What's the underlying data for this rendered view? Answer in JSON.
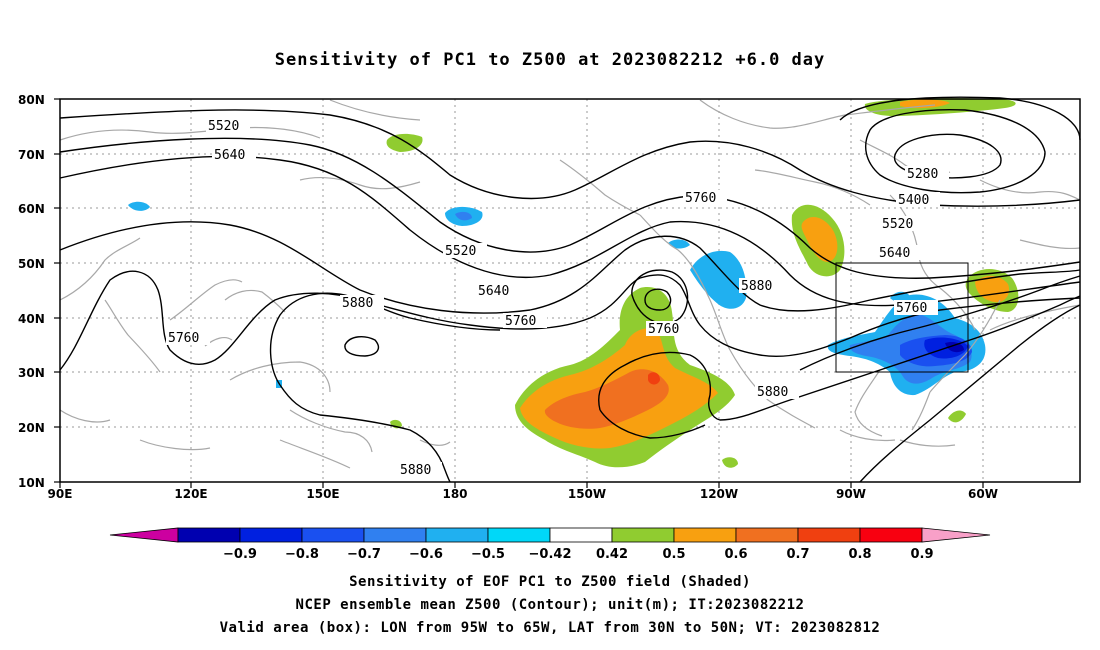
{
  "title": "Sensitivity of PC1 to Z500 at 2023082212 +6.0 day",
  "lat_labels": [
    "80N",
    "70N",
    "60N",
    "50N",
    "40N",
    "30N",
    "20N",
    "10N"
  ],
  "lon_labels": [
    "90E",
    "120E",
    "150E",
    "180",
    "150W",
    "120W",
    "90W",
    "60W"
  ],
  "contour_labels": {
    "c5520a": "5520",
    "c5640a": "5640",
    "c5520b": "5520",
    "c5640b": "5640",
    "c5760a": "5760",
    "c5880a": "5880",
    "c5760b": "5760",
    "c5760c": "5760",
    "c5760d": "5760",
    "c5880b": "5880",
    "c5880c": "5880",
    "c5880d": "5880",
    "c5280": "5280",
    "c5400": "5400",
    "c5520c": "5520",
    "c5640c": "5640",
    "c5760e": "5760"
  },
  "colorbar": {
    "ticks": [
      "−0.9",
      "−0.8",
      "−0.7",
      "−0.6",
      "−0.5",
      "−0.42",
      "0.42",
      "0.5",
      "0.6",
      "0.7",
      "0.8",
      "0.9"
    ],
    "colors": {
      "below": "#cc00a0",
      "bins": [
        "#0000b0",
        "#0020e0",
        "#1a50f0",
        "#3080f0",
        "#20b0f0",
        "#00d8f8",
        "#ffffff",
        "#90cc30",
        "#f8a010",
        "#f07020",
        "#f04010",
        "#f80010"
      ],
      "above": "#f8a0c8"
    }
  },
  "footer": [
    "Sensitivity of EOF PC1 to Z500 field (Shaded)",
    "NCEP ensemble mean Z500 (Contour); unit(m); IT:2023082212",
    "Valid area (box): LON from 95W to 65W, LAT from 30N to 50N; VT: 2023082812"
  ]
}
